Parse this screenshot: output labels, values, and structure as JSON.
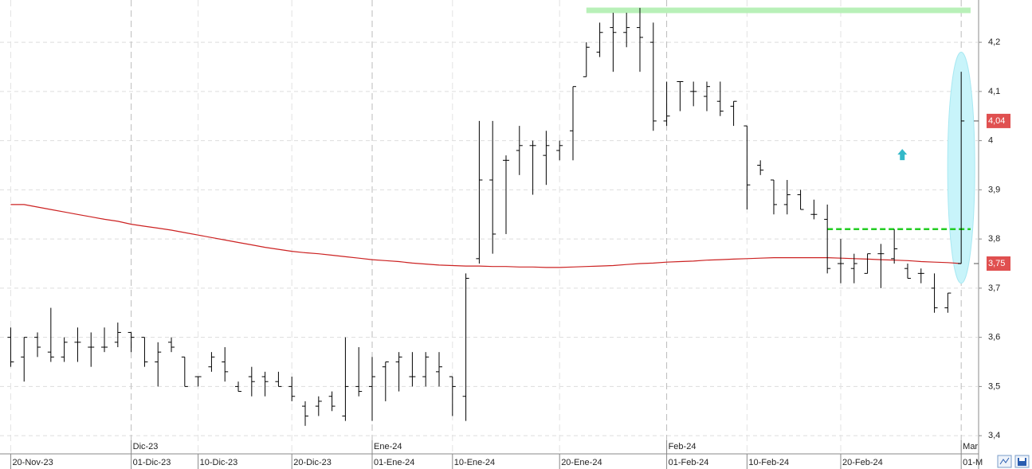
{
  "chart_data": {
    "type": "ohlc",
    "ylim": [
      3.363,
      4.286
    ],
    "yticks": [
      {
        "value": 3.4,
        "label": "3,4"
      },
      {
        "value": 3.5,
        "label": "3,5"
      },
      {
        "value": 3.6,
        "label": "3,6"
      },
      {
        "value": 3.7,
        "label": "3,7"
      },
      {
        "value": 3.8,
        "label": "3,8"
      },
      {
        "value": 3.9,
        "label": "3,9"
      },
      4,
      {
        "value": 4.1,
        "label": "4,1"
      },
      {
        "value": 4.2,
        "label": "4,2"
      }
    ],
    "xlim": [
      -0.8,
      72.3
    ],
    "xticks": [
      {
        "value": 0,
        "label": "20-Nov-23"
      },
      {
        "value": 9,
        "label": "01-Dic-23"
      },
      {
        "value": 14,
        "label": "10-Dic-23"
      },
      {
        "value": 21,
        "label": "20-Dic-23"
      },
      {
        "value": 27,
        "label": "01-Ene-24"
      },
      {
        "value": 33,
        "label": "10-Ene-24"
      },
      {
        "value": 41,
        "label": "20-Ene-24"
      },
      {
        "value": 49,
        "label": "01-Feb-24"
      },
      {
        "value": 55,
        "label": "10-Feb-24"
      },
      {
        "value": 62,
        "label": "20-Feb-24"
      },
      {
        "value": 71,
        "label": "01-M"
      }
    ],
    "month_ticks": [
      {
        "value": 9,
        "label": "Dic-23"
      },
      {
        "value": 27,
        "label": "Ene-24"
      },
      {
        "value": 49,
        "label": "Feb-24"
      },
      {
        "value": 71,
        "label": "Mar"
      }
    ],
    "grid": true,
    "color": "#000000",
    "ohlc": {
      "open": [
        3.6,
        3.56,
        3.6,
        3.57,
        3.56,
        3.59,
        3.58,
        3.58,
        3.59,
        3.61,
        3.6,
        3.55,
        3.59,
        3.56,
        3.52,
        3.54,
        3.55,
        3.5,
        3.52,
        3.52,
        3.51,
        3.5,
        3.46,
        3.46,
        3.48,
        3.44,
        3.5,
        3.5,
        3.54,
        3.55,
        3.52,
        3.52,
        3.53,
        3.52,
        3.48,
        3.76,
        3.92,
        3.96,
        3.98,
        3.99,
        3.97,
        3.98,
        4.02,
        4.13,
        4.18,
        4.23,
        4.22,
        4.23,
        4.2,
        4.04,
        4.12,
        4.1,
        4.09,
        4.08,
        4.07,
        4.03,
        3.95,
        3.92,
        3.87,
        3.89,
        3.85,
        3.84,
        3.75,
        3.74,
        3.73,
        3.77,
        3.76,
        3.74,
        3.73,
        3.7,
        3.66,
        3.75
      ],
      "high": [
        3.62,
        3.6,
        3.61,
        3.66,
        3.6,
        3.62,
        3.61,
        3.62,
        3.63,
        3.61,
        3.6,
        3.59,
        3.6,
        3.56,
        3.52,
        3.57,
        3.58,
        3.51,
        3.54,
        3.53,
        3.53,
        3.52,
        3.47,
        3.48,
        3.49,
        3.6,
        3.58,
        3.56,
        3.55,
        3.57,
        3.57,
        3.57,
        3.57,
        3.52,
        3.73,
        4.04,
        4.04,
        3.97,
        4.03,
        4.0,
        4.02,
        4.0,
        4.11,
        4.2,
        4.24,
        4.26,
        4.26,
        4.27,
        4.24,
        4.12,
        4.12,
        4.12,
        4.12,
        4.12,
        4.08,
        4.03,
        3.96,
        3.92,
        3.92,
        3.9,
        3.88,
        3.87,
        3.8,
        3.77,
        3.77,
        3.79,
        3.82,
        3.75,
        3.74,
        3.73,
        3.69,
        4.14
      ],
      "low": [
        3.54,
        3.51,
        3.56,
        3.55,
        3.55,
        3.55,
        3.54,
        3.57,
        3.58,
        3.57,
        3.54,
        3.5,
        3.57,
        3.5,
        3.5,
        3.53,
        3.51,
        3.49,
        3.48,
        3.48,
        3.5,
        3.47,
        3.42,
        3.44,
        3.45,
        3.43,
        3.48,
        3.43,
        3.47,
        3.49,
        3.5,
        3.5,
        3.5,
        3.44,
        3.43,
        3.75,
        3.77,
        3.81,
        3.93,
        3.89,
        3.91,
        3.96,
        3.96,
        4.13,
        4.17,
        4.14,
        4.19,
        4.14,
        4.02,
        4.03,
        4.06,
        4.07,
        4.06,
        4.05,
        4.03,
        3.86,
        3.93,
        3.85,
        3.85,
        3.86,
        3.84,
        3.73,
        3.71,
        3.71,
        3.73,
        3.7,
        3.75,
        3.72,
        3.71,
        3.65,
        3.65,
        3.75
      ],
      "close": [
        3.55,
        3.6,
        3.58,
        3.56,
        3.59,
        3.59,
        3.58,
        3.58,
        3.61,
        3.6,
        3.55,
        3.57,
        3.58,
        3.5,
        3.52,
        3.56,
        3.53,
        3.49,
        3.51,
        3.51,
        3.5,
        3.48,
        3.44,
        3.47,
        3.46,
        3.5,
        3.49,
        3.52,
        3.55,
        3.56,
        3.52,
        3.56,
        3.54,
        3.5,
        3.72,
        3.92,
        3.81,
        3.96,
        3.99,
        3.99,
        3.99,
        3.99,
        4.11,
        4.19,
        4.22,
        4.22,
        4.23,
        4.21,
        4.04,
        4.05,
        4.12,
        4.1,
        4.11,
        4.06,
        4.08,
        3.91,
        3.94,
        3.87,
        3.89,
        3.86,
        3.85,
        3.74,
        3.75,
        3.75,
        3.77,
        3.77,
        3.78,
        3.72,
        3.73,
        3.66,
        3.69,
        4.04
      ]
    },
    "moving_average": {
      "color": "#cc2222",
      "values": [
        3.87,
        3.87,
        3.865,
        3.86,
        3.855,
        3.85,
        3.845,
        3.84,
        3.836,
        3.83,
        3.826,
        3.822,
        3.818,
        3.813,
        3.808,
        3.803,
        3.798,
        3.793,
        3.788,
        3.783,
        3.779,
        3.775,
        3.772,
        3.77,
        3.767,
        3.764,
        3.761,
        3.758,
        3.756,
        3.754,
        3.751,
        3.749,
        3.747,
        3.746,
        3.745,
        3.745,
        3.744,
        3.744,
        3.743,
        3.743,
        3.742,
        3.742,
        3.743,
        3.744,
        3.745,
        3.746,
        3.748,
        3.75,
        3.751,
        3.753,
        3.754,
        3.755,
        3.757,
        3.758,
        3.759,
        3.76,
        3.761,
        3.762,
        3.762,
        3.762,
        3.762,
        3.762,
        3.761,
        3.76,
        3.759,
        3.758,
        3.757,
        3.756,
        3.754,
        3.753,
        3.752,
        3.75
      ]
    },
    "levels": [
      {
        "value": 4.265,
        "start": 43,
        "end": 71.7,
        "color": "#b8f0b8",
        "style": "solid"
      },
      {
        "value": 3.82,
        "start": 61,
        "end": 71.7,
        "color": "#22cc22",
        "style": "dashed"
      }
    ],
    "price_tags": [
      {
        "value": 4.04,
        "label": "4,04",
        "color": "#e05050"
      },
      {
        "value": 3.75,
        "label": "3,75",
        "color": "#e05050"
      }
    ],
    "signal": {
      "x": 66.6,
      "y": 3.97,
      "color": "#33b8c8"
    },
    "highlight": {
      "x": 71,
      "low": 3.71,
      "high": 4.18,
      "color": "#c8f4fa"
    }
  }
}
